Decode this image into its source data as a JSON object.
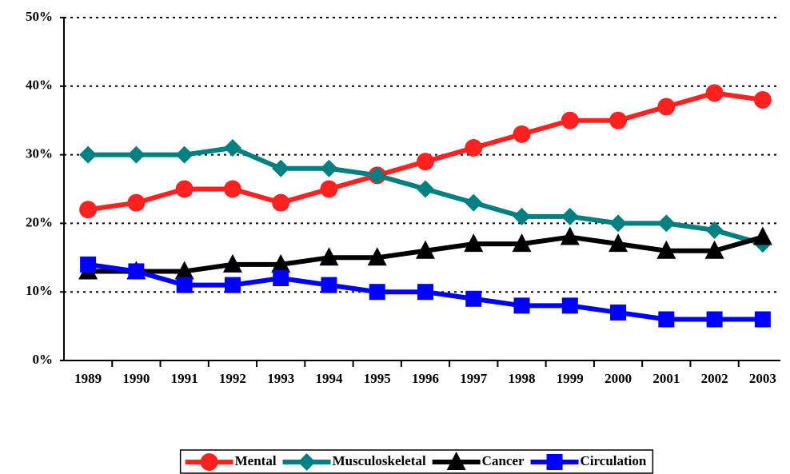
{
  "chart_data": {
    "type": "line",
    "categories": [
      "1989",
      "1990",
      "1991",
      "1992",
      "1993",
      "1994",
      "1995",
      "1996",
      "1997",
      "1998",
      "1999",
      "2000",
      "2001",
      "2002",
      "2003"
    ],
    "series": [
      {
        "name": "Mental",
        "color": "#ff2020",
        "marker": "circle",
        "values": [
          22,
          23,
          25,
          25,
          23,
          25,
          27,
          29,
          31,
          33,
          35,
          35,
          37,
          39,
          38
        ]
      },
      {
        "name": "Musculoskeletal",
        "color": "#008080",
        "marker": "diamond",
        "values": [
          30,
          30,
          30,
          31,
          28,
          28,
          27,
          25,
          23,
          21,
          21,
          20,
          20,
          19,
          17
        ]
      },
      {
        "name": "Cancer",
        "color": "#000000",
        "marker": "triangle",
        "values": [
          13,
          13,
          13,
          14,
          14,
          15,
          15,
          16,
          17,
          17,
          18,
          17,
          16,
          16,
          18
        ]
      },
      {
        "name": "Circulation",
        "color": "#0000ff",
        "marker": "square",
        "values": [
          14,
          13,
          11,
          11,
          12,
          11,
          10,
          10,
          9,
          8,
          8,
          7,
          6,
          6,
          6
        ]
      }
    ],
    "ylim": [
      0,
      50
    ],
    "yticks": [
      {
        "value": 0,
        "label": "0%"
      },
      {
        "value": 10,
        "label": "10%"
      },
      {
        "value": 20,
        "label": "20%"
      },
      {
        "value": 30,
        "label": "30%"
      },
      {
        "value": 40,
        "label": "40%"
      },
      {
        "value": 50,
        "label": "50%"
      }
    ],
    "grid": true,
    "legend": "bottom"
  }
}
